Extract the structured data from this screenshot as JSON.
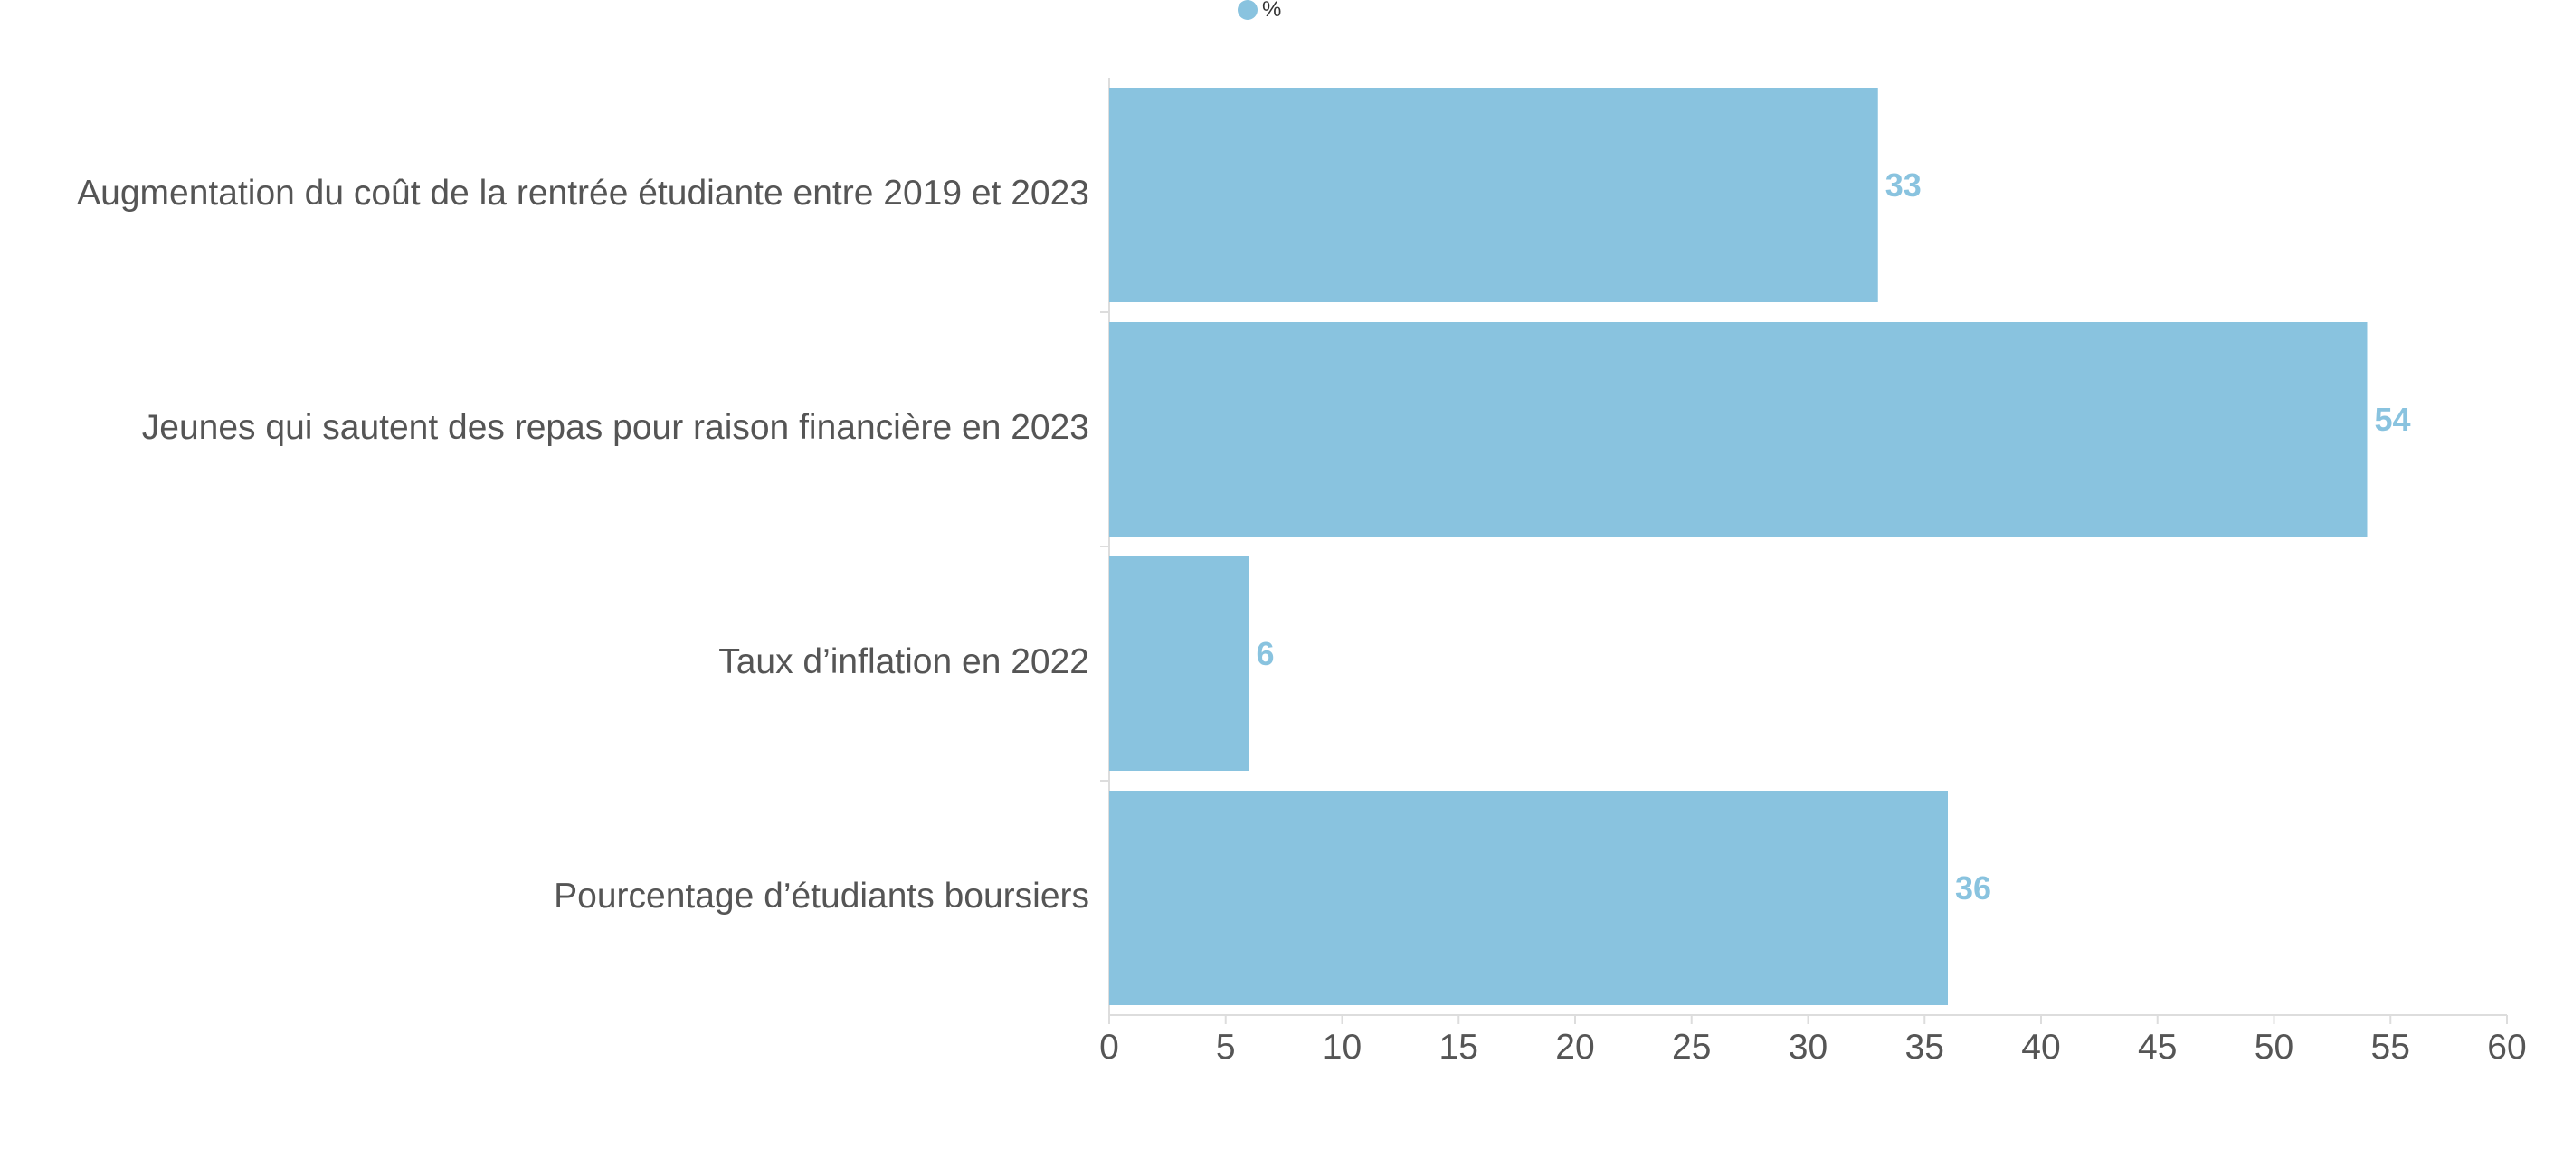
{
  "chart_data": {
    "type": "bar",
    "orientation": "horizontal",
    "categories": [
      "Augmentation du coût de la rentrée étudiante entre 2019 et 2023",
      "Jeunes qui sautent des repas pour raison financière en 2023",
      "Taux d’inflation en 2022",
      "Pourcentage d’étudiants boursiers"
    ],
    "series": [
      {
        "name": "%",
        "values": [
          33,
          54,
          6,
          36
        ]
      }
    ],
    "xlim": [
      0,
      60
    ],
    "xticks": [
      "0",
      "5",
      "10",
      "15",
      "20",
      "25",
      "30",
      "35",
      "40",
      "45",
      "50",
      "55",
      "60"
    ],
    "grid": false,
    "legend_position": "top",
    "data_labels": true
  },
  "colors": {
    "bar": "#89C3DF",
    "data_label": "#89C3DF",
    "axis_line": "#dddddd",
    "text": "#555555"
  }
}
